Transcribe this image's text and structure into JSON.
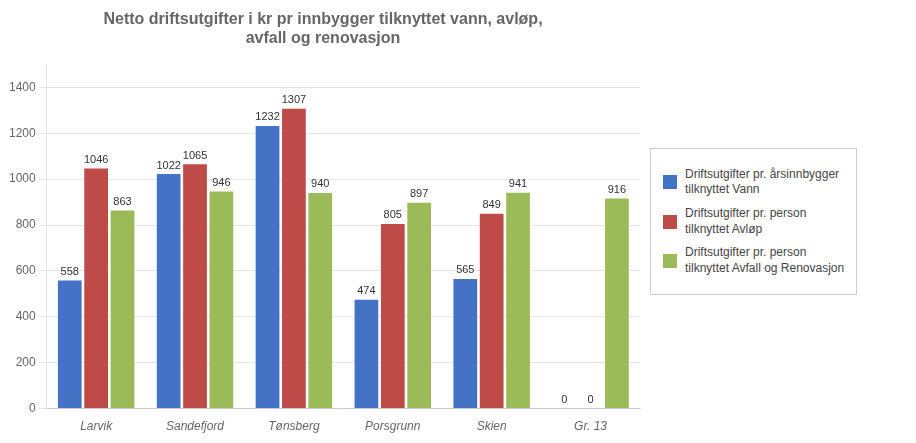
{
  "chart_data": {
    "type": "bar",
    "title": "Netto driftsutgifter i kr pr innbygger tilknyttet vann, avløp,\navfall og renovasjon",
    "categories": [
      "Larvik",
      "Sandefjord",
      "Tønsberg",
      "Porsgrunn",
      "Skien",
      "Gr. 13"
    ],
    "series": [
      {
        "name": "Driftsutgifter pr. årsinnbygger\ntilknyttet Vann",
        "color": "#4472C4",
        "values": [
          558,
          1022,
          1232,
          474,
          565,
          0
        ]
      },
      {
        "name": "Driftsutgifter pr. person\ntilknyttet Avløp",
        "color": "#BE4B48",
        "values": [
          1046,
          1065,
          1307,
          805,
          849,
          0
        ]
      },
      {
        "name": "Driftsutgifter pr. person\ntilknyttet Avfall og Renovasjon",
        "color": "#9BBB59",
        "values": [
          863,
          946,
          940,
          897,
          941,
          916
        ]
      }
    ],
    "ylim": [
      0,
      1500
    ],
    "yticks": [
      0,
      200,
      400,
      600,
      800,
      1000,
      1200,
      1400
    ],
    "grid": true,
    "legend": "right",
    "data_labels": true
  }
}
